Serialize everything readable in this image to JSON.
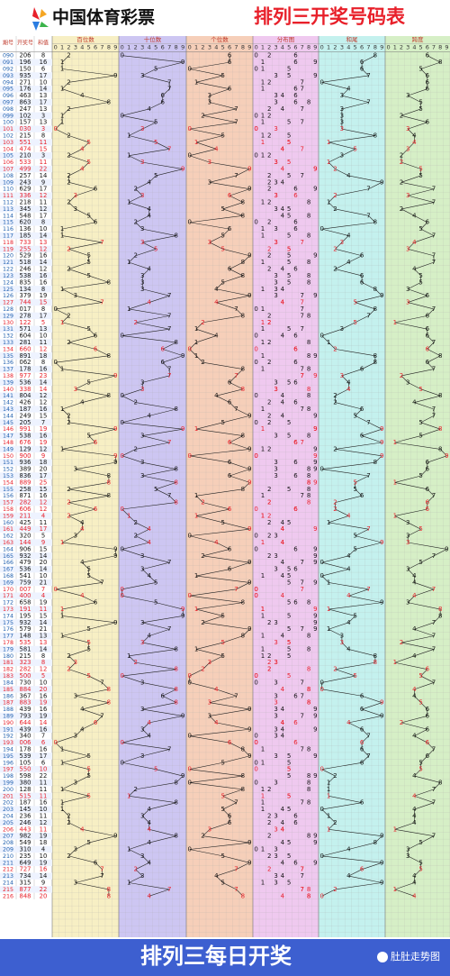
{
  "header": {
    "logo": "中国体育彩票",
    "title": "排列三开奖号码表"
  },
  "columns": {
    "issue": "期号",
    "number": "开奖号",
    "sum": "和值"
  },
  "groups": [
    "百位数",
    "十位数",
    "个位数",
    "分布图",
    "和尾",
    "跨度"
  ],
  "digits": [
    0,
    1,
    2,
    3,
    4,
    5,
    6,
    7,
    8,
    9
  ],
  "rows": [
    [
      "090",
      "206",
      8,
      2,
      0,
      6,
      8,
      6
    ],
    [
      "091",
      "196",
      16,
      1,
      9,
      6,
      6,
      8
    ],
    [
      "092",
      "150",
      6,
      1,
      5,
      0,
      6,
      5
    ],
    [
      "093",
      "935",
      17,
      9,
      3,
      5,
      7,
      6
    ],
    [
      "094",
      "271",
      10,
      2,
      7,
      1,
      0,
      6
    ],
    [
      "095",
      "176",
      14,
      1,
      7,
      6,
      4,
      6
    ],
    [
      "096",
      "463",
      13,
      4,
      6,
      3,
      3,
      3
    ],
    [
      "097",
      "863",
      17,
      8,
      6,
      3,
      7,
      5
    ],
    [
      "098",
      "247",
      13,
      2,
      4,
      7,
      3,
      5
    ],
    [
      "099",
      "102",
      3,
      1,
      0,
      2,
      3,
      2
    ],
    [
      "100",
      "157",
      13,
      1,
      5,
      7,
      3,
      6
    ],
    [
      "101",
      "030",
      3,
      0,
      3,
      0,
      3,
      3
    ],
    [
      "102",
      "215",
      8,
      2,
      1,
      5,
      8,
      4
    ],
    [
      "103",
      "551",
      11,
      5,
      5,
      1,
      1,
      4
    ],
    [
      "104",
      "474",
      15,
      4,
      7,
      4,
      5,
      3
    ],
    [
      "105",
      "210",
      3,
      2,
      1,
      0,
      3,
      2
    ],
    [
      "106",
      "533",
      11,
      5,
      3,
      3,
      1,
      2
    ],
    [
      "107",
      "499",
      22,
      4,
      9,
      9,
      2,
      5
    ],
    [
      "108",
      "257",
      14,
      2,
      5,
      7,
      4,
      5
    ],
    [
      "109",
      "243",
      9,
      2,
      4,
      3,
      9,
      2
    ],
    [
      "110",
      "629",
      17,
      6,
      2,
      9,
      7,
      7
    ],
    [
      "111",
      "336",
      12,
      3,
      3,
      6,
      2,
      3
    ],
    [
      "112",
      "218",
      11,
      2,
      1,
      8,
      1,
      7
    ],
    [
      "113",
      "345",
      12,
      3,
      4,
      5,
      2,
      2
    ],
    [
      "114",
      "548",
      17,
      5,
      4,
      8,
      7,
      4
    ],
    [
      "115",
      "620",
      8,
      6,
      2,
      0,
      8,
      6
    ],
    [
      "116",
      "136",
      10,
      1,
      3,
      6,
      0,
      5
    ],
    [
      "117",
      "185",
      14,
      1,
      8,
      5,
      4,
      7
    ],
    [
      "118",
      "733",
      13,
      7,
      3,
      3,
      3,
      4
    ],
    [
      "119",
      "255",
      12,
      2,
      5,
      5,
      2,
      3
    ],
    [
      "120",
      "529",
      16,
      5,
      2,
      9,
      6,
      7
    ],
    [
      "121",
      "518",
      14,
      5,
      1,
      8,
      4,
      7
    ],
    [
      "122",
      "246",
      12,
      2,
      4,
      6,
      2,
      4
    ],
    [
      "123",
      "538",
      16,
      5,
      3,
      8,
      6,
      5
    ],
    [
      "124",
      "835",
      16,
      8,
      3,
      5,
      6,
      5
    ],
    [
      "125",
      "134",
      8,
      1,
      3,
      4,
      8,
      3
    ],
    [
      "126",
      "379",
      19,
      3,
      7,
      9,
      9,
      6
    ],
    [
      "127",
      "744",
      15,
      7,
      4,
      4,
      5,
      3
    ],
    [
      "128",
      "017",
      8,
      0,
      1,
      7,
      8,
      7
    ],
    [
      "129",
      "278",
      17,
      2,
      7,
      8,
      7,
      6
    ],
    [
      "130",
      "122",
      5,
      1,
      2,
      2,
      5,
      1
    ],
    [
      "131",
      "571",
      13,
      5,
      7,
      1,
      3,
      6
    ],
    [
      "132",
      "604",
      10,
      6,
      0,
      4,
      0,
      6
    ],
    [
      "133",
      "281",
      11,
      2,
      8,
      1,
      1,
      7
    ],
    [
      "134",
      "660",
      12,
      6,
      6,
      0,
      2,
      6
    ],
    [
      "135",
      "891",
      18,
      8,
      9,
      1,
      8,
      8
    ],
    [
      "136",
      "062",
      8,
      0,
      6,
      2,
      8,
      6
    ],
    [
      "137",
      "178",
      16,
      1,
      7,
      8,
      6,
      7
    ],
    [
      "138",
      "977",
      23,
      9,
      7,
      7,
      3,
      2
    ],
    [
      "139",
      "536",
      14,
      5,
      3,
      6,
      4,
      3
    ],
    [
      "140",
      "338",
      14,
      3,
      3,
      8,
      4,
      5
    ],
    [
      "141",
      "804",
      12,
      8,
      0,
      4,
      2,
      8
    ],
    [
      "142",
      "426",
      12,
      4,
      2,
      6,
      2,
      4
    ],
    [
      "143",
      "187",
      16,
      1,
      8,
      7,
      6,
      7
    ],
    [
      "144",
      "249",
      15,
      2,
      4,
      9,
      5,
      7
    ],
    [
      "145",
      "205",
      7,
      2,
      0,
      5,
      7,
      5
    ],
    [
      "146",
      "991",
      19,
      9,
      9,
      1,
      9,
      8
    ],
    [
      "147",
      "538",
      16,
      5,
      3,
      8,
      6,
      5
    ],
    [
      "148",
      "676",
      19,
      6,
      7,
      6,
      9,
      1
    ],
    [
      "149",
      "129",
      12,
      1,
      2,
      9,
      2,
      8
    ],
    [
      "150",
      "900",
      9,
      9,
      0,
      0,
      9,
      9
    ],
    [
      "151",
      "936",
      18,
      9,
      3,
      6,
      8,
      6
    ],
    [
      "152",
      "389",
      20,
      3,
      8,
      9,
      0,
      6
    ],
    [
      "153",
      "836",
      17,
      8,
      3,
      6,
      7,
      5
    ],
    [
      "154",
      "889",
      25,
      8,
      8,
      9,
      5,
      1
    ],
    [
      "155",
      "258",
      15,
      2,
      5,
      8,
      5,
      6
    ],
    [
      "156",
      "871",
      16,
      8,
      7,
      1,
      6,
      7
    ],
    [
      "157",
      "282",
      12,
      2,
      8,
      2,
      2,
      6
    ],
    [
      "158",
      "606",
      12,
      6,
      0,
      6,
      2,
      6
    ],
    [
      "159",
      "211",
      4,
      2,
      1,
      1,
      4,
      1
    ],
    [
      "160",
      "425",
      11,
      4,
      2,
      5,
      1,
      3
    ],
    [
      "161",
      "449",
      17,
      4,
      4,
      9,
      7,
      5
    ],
    [
      "162",
      "320",
      5,
      3,
      2,
      0,
      5,
      3
    ],
    [
      "163",
      "144",
      9,
      1,
      4,
      4,
      9,
      3
    ],
    [
      "164",
      "906",
      15,
      9,
      0,
      6,
      5,
      9
    ],
    [
      "165",
      "932",
      14,
      9,
      3,
      2,
      4,
      7
    ],
    [
      "166",
      "479",
      20,
      4,
      7,
      9,
      0,
      5
    ],
    [
      "167",
      "536",
      14,
      5,
      3,
      6,
      4,
      3
    ],
    [
      "168",
      "541",
      10,
      5,
      4,
      1,
      0,
      4
    ],
    [
      "169",
      "759",
      21,
      7,
      5,
      9,
      1,
      4
    ],
    [
      "170",
      "007",
      7,
      0,
      0,
      7,
      7,
      7
    ],
    [
      "171",
      "400",
      4,
      4,
      0,
      0,
      4,
      4
    ],
    [
      "172",
      "658",
      19,
      6,
      5,
      8,
      9,
      3
    ],
    [
      "173",
      "191",
      11,
      1,
      9,
      1,
      1,
      8
    ],
    [
      "174",
      "195",
      15,
      1,
      9,
      5,
      5,
      8
    ],
    [
      "175",
      "932",
      14,
      9,
      3,
      2,
      4,
      7
    ],
    [
      "176",
      "579",
      21,
      5,
      7,
      9,
      1,
      4
    ],
    [
      "177",
      "148",
      13,
      1,
      4,
      8,
      3,
      7
    ],
    [
      "178",
      "535",
      13,
      5,
      3,
      5,
      3,
      2
    ],
    [
      "179",
      "581",
      14,
      5,
      8,
      1,
      4,
      7
    ],
    [
      "180",
      "215",
      8,
      2,
      1,
      5,
      8,
      4
    ],
    [
      "181",
      "323",
      8,
      3,
      2,
      3,
      8,
      1
    ],
    [
      "182",
      "282",
      12,
      2,
      8,
      2,
      2,
      6
    ],
    [
      "183",
      "500",
      5,
      5,
      0,
      0,
      5,
      5
    ],
    [
      "184",
      "730",
      10,
      7,
      3,
      0,
      0,
      7
    ],
    [
      "185",
      "884",
      20,
      8,
      8,
      4,
      0,
      4
    ],
    [
      "186",
      "367",
      16,
      3,
      6,
      7,
      6,
      4
    ],
    [
      "187",
      "883",
      19,
      8,
      8,
      3,
      9,
      5
    ],
    [
      "188",
      "439",
      16,
      4,
      3,
      9,
      6,
      6
    ],
    [
      "189",
      "793",
      19,
      7,
      9,
      3,
      9,
      6
    ],
    [
      "190",
      "644",
      14,
      6,
      4,
      4,
      4,
      2
    ],
    [
      "191",
      "439",
      16,
      4,
      3,
      9,
      6,
      6
    ],
    [
      "192",
      "340",
      7,
      3,
      4,
      0,
      7,
      4
    ],
    [
      "193",
      "006",
      6,
      0,
      0,
      6,
      6,
      6
    ],
    [
      "194",
      "178",
      16,
      1,
      7,
      8,
      6,
      7
    ],
    [
      "195",
      "539",
      17,
      5,
      3,
      9,
      7,
      6
    ],
    [
      "196",
      "105",
      6,
      1,
      0,
      5,
      6,
      5
    ],
    [
      "197",
      "550",
      10,
      5,
      5,
      0,
      0,
      5
    ],
    [
      "198",
      "598",
      22,
      5,
      9,
      8,
      2,
      4
    ],
    [
      "199",
      "380",
      11,
      3,
      8,
      0,
      1,
      8
    ],
    [
      "200",
      "128",
      11,
      1,
      2,
      8,
      1,
      7
    ],
    [
      "201",
      "515",
      11,
      5,
      1,
      5,
      1,
      4
    ],
    [
      "202",
      "187",
      16,
      1,
      8,
      7,
      6,
      7
    ],
    [
      "203",
      "145",
      10,
      1,
      4,
      5,
      0,
      4
    ],
    [
      "204",
      "236",
      11,
      2,
      3,
      6,
      1,
      4
    ],
    [
      "205",
      "246",
      12,
      2,
      4,
      6,
      2,
      4
    ],
    [
      "206",
      "443",
      11,
      4,
      4,
      3,
      1,
      1
    ],
    [
      "207",
      "982",
      19,
      9,
      8,
      2,
      9,
      7
    ],
    [
      "208",
      "549",
      18,
      5,
      4,
      9,
      8,
      5
    ],
    [
      "209",
      "310",
      4,
      3,
      1,
      0,
      4,
      3
    ],
    [
      "210",
      "235",
      10,
      2,
      3,
      5,
      0,
      3
    ],
    [
      "211",
      "649",
      19,
      6,
      4,
      9,
      9,
      5
    ],
    [
      "212",
      "727",
      16,
      7,
      2,
      7,
      6,
      5
    ],
    [
      "213",
      "734",
      14,
      7,
      3,
      4,
      4,
      4
    ],
    [
      "214",
      "315",
      9,
      3,
      1,
      5,
      9,
      4
    ],
    [
      "215",
      "877",
      22,
      8,
      7,
      7,
      2,
      1
    ],
    [
      "216",
      "848",
      20,
      8,
      4,
      8,
      0,
      4
    ]
  ],
  "footer": {
    "title": "排列三每日开奖",
    "watermark": "肚肚走势图"
  }
}
